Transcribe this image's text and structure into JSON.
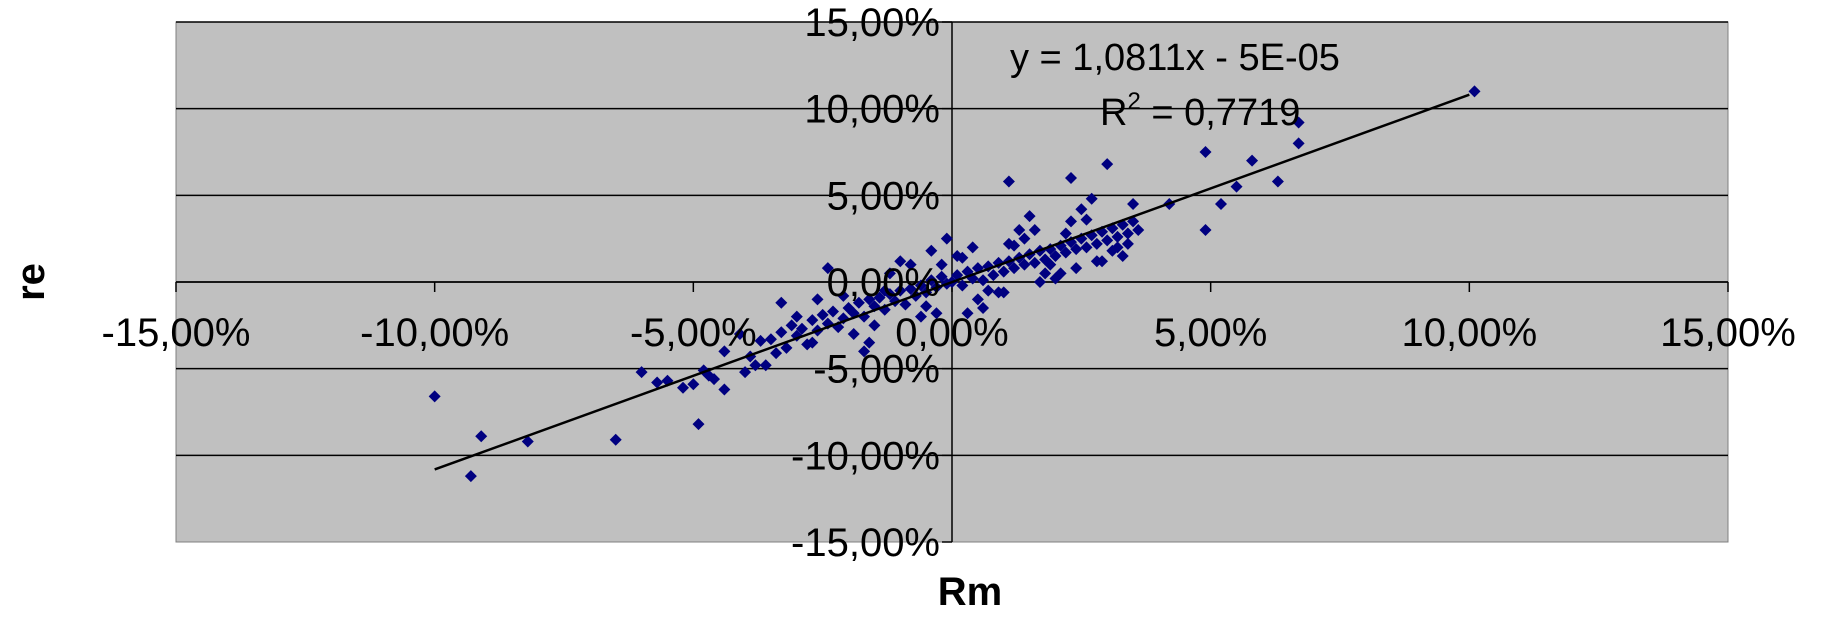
{
  "colors": {
    "plot_background": "#c0c0c0",
    "gridline": "#000000",
    "marker": "#000080",
    "trendline": "#000000",
    "page_background": "#ffffff"
  },
  "chart_data": {
    "type": "scatter",
    "title": "",
    "xlabel": "Rm",
    "ylabel": "re",
    "xlim": [
      -0.15,
      0.15
    ],
    "ylim": [
      -0.15,
      0.15
    ],
    "xticks": [
      -0.15,
      -0.1,
      -0.05,
      0.0,
      0.05,
      0.1,
      0.15
    ],
    "yticks": [
      -0.15,
      -0.1,
      -0.05,
      0.0,
      0.05,
      0.1,
      0.15
    ],
    "xtick_labels": [
      "-15,00%",
      "-10,00%",
      "-5,00%",
      "0,00%",
      "5,00%",
      "10,00%",
      "15,00%"
    ],
    "ytick_labels": [
      "-15,00%",
      "-10,00%",
      "-5,00%",
      "0,00%",
      "5,00%",
      "10,00%",
      "15,00%"
    ],
    "grid": {
      "horizontal": true,
      "vertical": false
    },
    "legend": "none",
    "marker": "diamond",
    "trendline": {
      "type": "linear",
      "slope": 1.0811,
      "intercept": -5e-05,
      "x_range": [
        -0.1,
        0.1
      ],
      "equation_label": "y = 1,0811x - 5E-05",
      "r2_prefix": "R",
      "r2_sup": "2",
      "r2_suffix": " = 0,7719"
    },
    "series": [
      {
        "x": [
          0.101,
          -0.1,
          -0.093,
          -0.091,
          -0.082,
          -0.065,
          -0.06,
          -0.057,
          -0.055,
          -0.052,
          -0.05,
          -0.049,
          -0.048,
          -0.047,
          -0.046,
          -0.044,
          -0.04,
          -0.039,
          -0.037,
          -0.036,
          -0.035,
          -0.034,
          -0.033,
          -0.032,
          -0.031,
          -0.03,
          -0.029,
          -0.028,
          -0.027,
          -0.026,
          -0.025,
          -0.024,
          -0.023,
          -0.022,
          -0.021,
          -0.02,
          -0.019,
          -0.018,
          -0.017,
          -0.016,
          -0.015,
          -0.014,
          -0.013,
          -0.012,
          -0.011,
          -0.01,
          -0.009,
          -0.008,
          -0.007,
          -0.006,
          -0.005,
          -0.004,
          -0.003,
          -0.002,
          -0.001,
          0.0,
          0.001,
          0.002,
          0.003,
          0.004,
          0.005,
          0.006,
          0.007,
          0.008,
          0.009,
          0.01,
          0.011,
          0.012,
          0.013,
          0.014,
          0.015,
          0.016,
          0.017,
          0.018,
          0.019,
          0.02,
          0.021,
          0.022,
          0.023,
          0.024,
          0.025,
          0.026,
          0.027,
          0.028,
          0.029,
          0.03,
          0.031,
          0.032,
          0.033,
          0.034,
          0.035,
          0.036,
          0.042,
          0.049,
          0.049,
          0.052,
          0.055,
          0.058,
          0.063,
          0.067,
          0.067,
          -0.024,
          -0.01,
          -0.005,
          0.001,
          0.007,
          0.012,
          0.018,
          0.022,
          0.028,
          -0.041,
          -0.038,
          -0.044,
          -0.033,
          -0.027,
          -0.021,
          -0.015,
          -0.008,
          -0.003,
          0.004,
          0.01,
          0.016,
          0.024,
          0.031,
          -0.019,
          -0.012,
          -0.006,
          0.002,
          0.009,
          0.014,
          0.02,
          0.026,
          0.033,
          -0.016,
          -0.002,
          0.005,
          0.011,
          0.017,
          0.023,
          0.029,
          0.035,
          -0.03,
          -0.017,
          -0.004,
          0.003,
          0.013,
          0.019,
          0.025,
          0.032,
          -0.026,
          -0.013,
          -0.001,
          0.006,
          0.015,
          0.021,
          0.027,
          0.034,
          0.011,
          0.023,
          0.03
        ],
        "y": [
          0.11,
          -0.066,
          -0.112,
          -0.089,
          -0.092,
          -0.091,
          -0.052,
          -0.058,
          -0.057,
          -0.061,
          -0.059,
          -0.082,
          -0.051,
          -0.054,
          -0.056,
          -0.062,
          -0.052,
          -0.043,
          -0.034,
          -0.048,
          -0.033,
          -0.041,
          -0.029,
          -0.038,
          -0.025,
          -0.031,
          -0.027,
          -0.036,
          -0.022,
          -0.028,
          -0.019,
          -0.024,
          -0.017,
          -0.026,
          -0.021,
          -0.015,
          -0.018,
          -0.012,
          -0.02,
          -0.01,
          -0.014,
          -0.009,
          -0.016,
          -0.007,
          -0.011,
          -0.005,
          -0.013,
          -0.004,
          -0.008,
          -0.002,
          -0.006,
          0.001,
          -0.003,
          0.003,
          -0.001,
          0.0,
          0.004,
          -0.002,
          0.006,
          0.002,
          0.008,
          0.001,
          0.009,
          0.004,
          0.011,
          0.006,
          0.012,
          0.008,
          0.014,
          0.01,
          0.016,
          0.011,
          0.018,
          0.013,
          0.019,
          0.015,
          0.021,
          0.017,
          0.023,
          0.019,
          0.025,
          0.02,
          0.027,
          0.022,
          0.029,
          0.024,
          0.031,
          0.026,
          0.033,
          0.028,
          0.035,
          0.03,
          0.045,
          0.075,
          0.03,
          0.045,
          0.055,
          0.07,
          0.058,
          0.08,
          0.092,
          0.008,
          0.012,
          -0.014,
          0.015,
          -0.005,
          0.021,
          0.005,
          0.028,
          0.012,
          -0.03,
          -0.048,
          -0.04,
          -0.012,
          -0.035,
          -0.008,
          -0.025,
          0.01,
          -0.018,
          0.02,
          -0.006,
          0.03,
          0.008,
          0.018,
          -0.03,
          0.005,
          -0.02,
          0.014,
          -0.006,
          0.025,
          0.002,
          0.036,
          0.015,
          -0.035,
          0.01,
          -0.01,
          0.022,
          0.0,
          0.035,
          0.012,
          0.045,
          -0.02,
          -0.04,
          0.018,
          -0.018,
          0.03,
          0.01,
          0.042,
          0.02,
          -0.01,
          -0.005,
          0.025,
          -0.015,
          0.038,
          0.005,
          0.048,
          0.022,
          0.058,
          0.06,
          0.068
        ]
      }
    ]
  }
}
